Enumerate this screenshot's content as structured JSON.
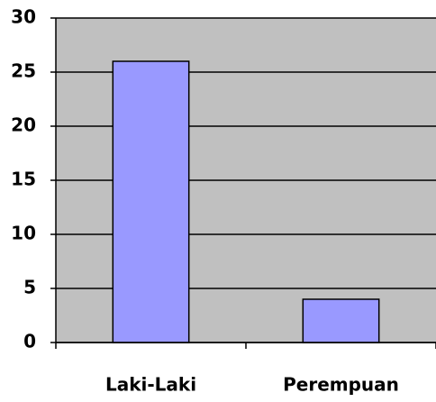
{
  "chart_data": {
    "type": "bar",
    "categories": [
      "Laki-Laki",
      "Perempuan"
    ],
    "values": [
      26,
      4
    ],
    "color": "#9999ff",
    "ylim": [
      0,
      30
    ],
    "yticks": [
      0,
      5,
      10,
      15,
      20,
      25,
      30
    ],
    "grid": true
  }
}
